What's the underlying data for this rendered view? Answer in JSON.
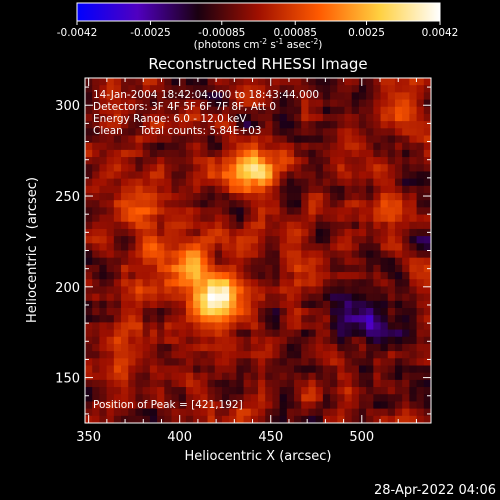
{
  "chart_data": {
    "type": "heatmap",
    "title": "Reconstructed RHESSI Image",
    "xlabel": "Heliocentric X (arcsec)",
    "ylabel": "Heliocentric Y (arcsec)",
    "xlim": [
      348,
      538
    ],
    "ylim": [
      125,
      315
    ],
    "x_ticks": [
      350,
      400,
      450,
      500
    ],
    "y_ticks": [
      150,
      200,
      250,
      300
    ],
    "grid": false,
    "colorbar": {
      "ticks": [
        -0.0042,
        -0.0025,
        -0.00085,
        0.00085,
        0.0025,
        0.0042
      ],
      "tick_labels": [
        "-0.0042",
        "-0.0025",
        "-0.00085",
        "0.00085",
        "0.0025",
        "0.0042"
      ],
      "unit_prefix": "(photons cm",
      "unit_exp1": "-2",
      "unit_mid": " s",
      "unit_exp2": "-1",
      "unit_mid2": " asec",
      "unit_exp3": "-2",
      "unit_suffix": ")",
      "colors": [
        "#0000ff",
        "#5000c0",
        "#1a0010",
        "#a01000",
        "#ff5a00",
        "#ffd040",
        "#ffffff"
      ]
    },
    "annotations": [
      "14-Jan-2004 18:42:04.000 to 18:43:44.000",
      "Detectors: 3F 4F 5F 6F 7F 8F, Att 0",
      "Energy Range: 6.0 - 12.0 keV",
      "Clean     Total counts: 5.84E+03"
    ],
    "peak_label": "Position of Peak = [421,192]",
    "peak": {
      "x": 421,
      "y": 192,
      "value": 0.0042
    },
    "sources": [
      {
        "x": 421,
        "y": 192,
        "value": 0.0042,
        "sigma": 10
      },
      {
        "x": 440,
        "y": 265,
        "value": 0.003,
        "sigma": 10
      },
      {
        "x": 385,
        "y": 245,
        "value": 0.002,
        "sigma": 9
      },
      {
        "x": 400,
        "y": 215,
        "value": 0.002,
        "sigma": 12
      },
      {
        "x": 370,
        "y": 160,
        "value": 0.0012,
        "sigma": 10
      },
      {
        "x": 525,
        "y": 295,
        "value": 0.0014,
        "sigma": 9
      },
      {
        "x": 520,
        "y": 240,
        "value": 0.001,
        "sigma": 8
      },
      {
        "x": 470,
        "y": 210,
        "value": 0.001,
        "sigma": 12
      },
      {
        "x": 505,
        "y": 180,
        "value": -0.0015,
        "sigma": 14
      },
      {
        "x": 525,
        "y": 140,
        "value": -0.0012,
        "sigma": 10
      },
      {
        "x": 490,
        "y": 300,
        "value": -0.001,
        "sigma": 12
      }
    ]
  },
  "footer": {
    "timestamp": "28-Apr-2022 04:06"
  }
}
